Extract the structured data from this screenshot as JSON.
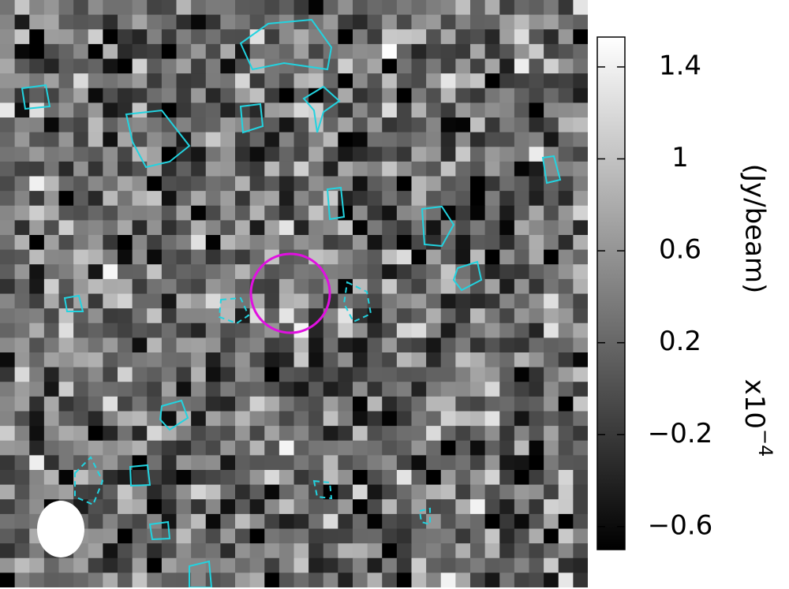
{
  "colorbar": {
    "label": "(Jy/beam)",
    "multiplier": {
      "base": "x10",
      "exponent": "−4"
    },
    "range": [
      -0.7,
      1.53
    ],
    "ticks": [
      1.4,
      1,
      0.6,
      0.2,
      {
        "value": -0.2,
        "label": "−0.2"
      },
      {
        "value": -0.6,
        "label": "−0.6"
      }
    ]
  }
}
